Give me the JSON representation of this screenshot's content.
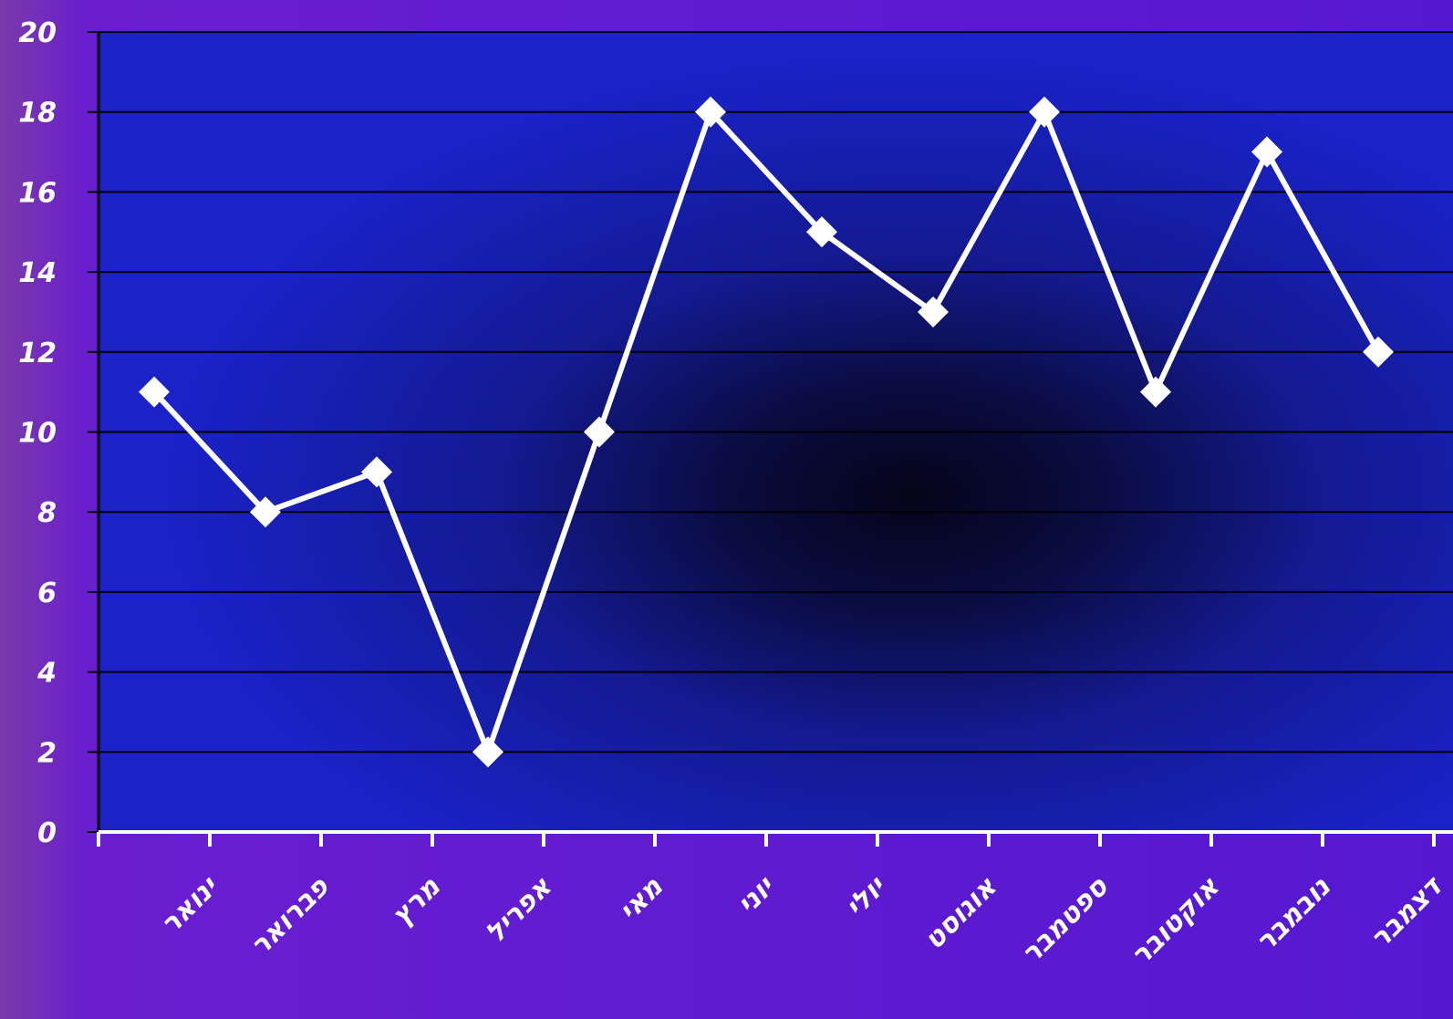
{
  "chart_data": {
    "type": "line",
    "title": "",
    "xlabel": "",
    "ylabel": "",
    "categories": [
      "ינואר",
      "פברואר",
      "מרץ",
      "אפריל",
      "מאי",
      "יוני",
      "יולי",
      "אוגוסט",
      "ספטמבר",
      "אוקטובר",
      "נובמבר",
      "דצמבר"
    ],
    "series": [
      {
        "values": [
          11,
          8,
          9,
          2,
          10,
          18,
          15,
          13,
          18,
          11,
          17,
          12
        ]
      }
    ],
    "ylim": [
      0,
      20
    ],
    "yticks": [
      0,
      2,
      4,
      6,
      8,
      10,
      12,
      14,
      16,
      18,
      20
    ],
    "grid": true,
    "legend": "none",
    "marker": "diamond",
    "colors": {
      "background": "#5a18c8",
      "plot_area": "#1a22c8",
      "plot_center": "#05051a",
      "line": "#ffffff",
      "grid": "#000000",
      "axis": "#ffffff",
      "text": "#ffffff"
    }
  }
}
